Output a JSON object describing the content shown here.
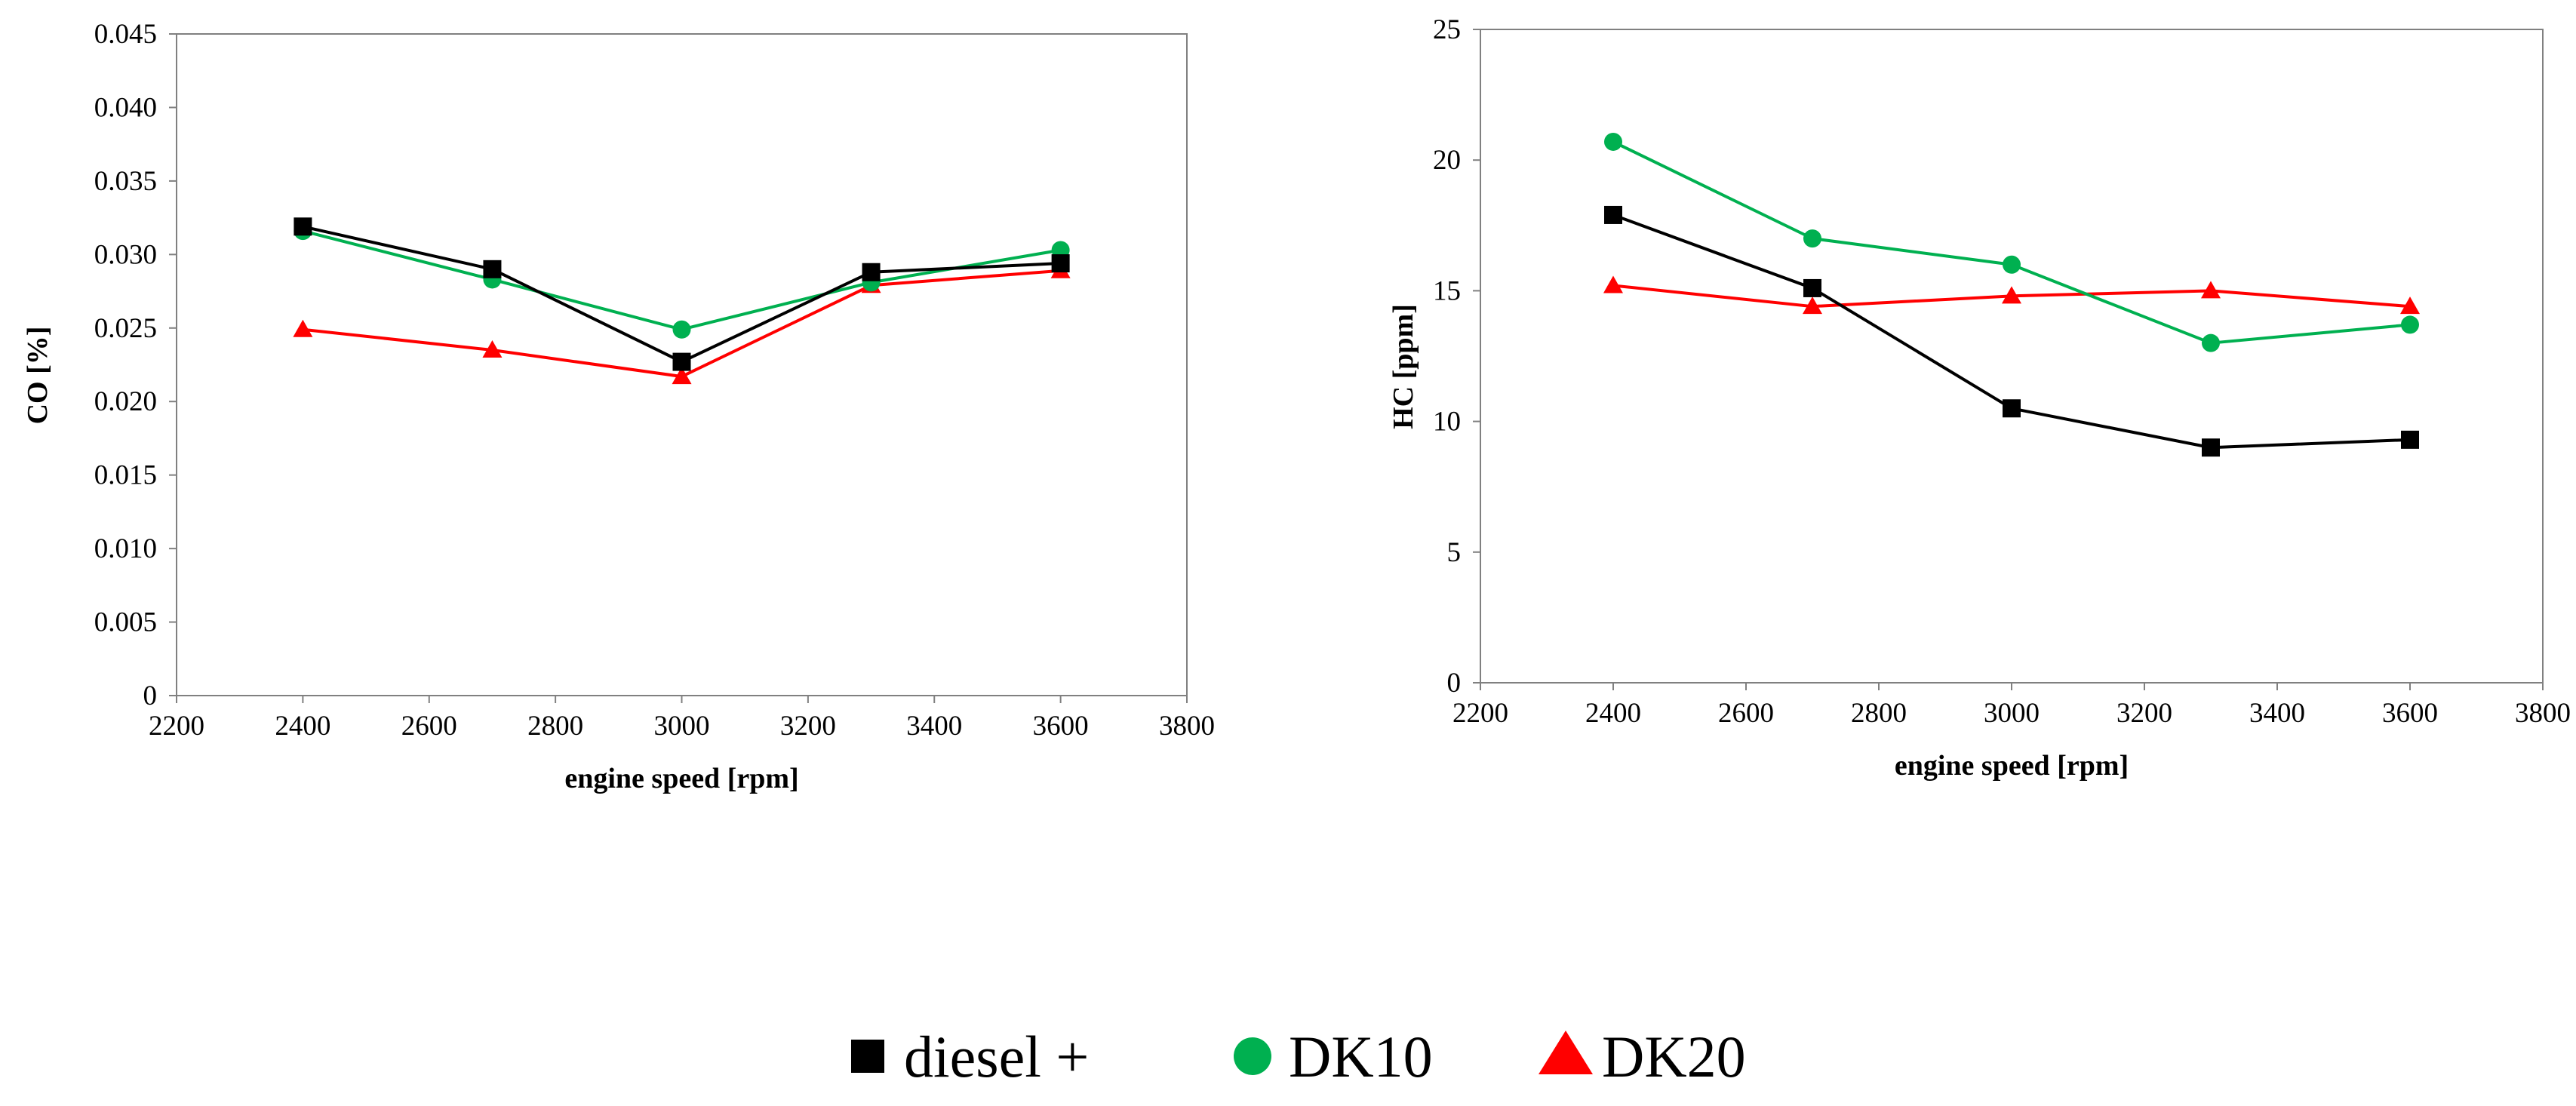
{
  "colors": {
    "diesel": "#000000",
    "dk10": "#00b050",
    "dk20": "#ff0000",
    "frame": "#808080"
  },
  "legend": [
    {
      "key": "diesel",
      "label": "diesel +",
      "marker": "square"
    },
    {
      "key": "dk10",
      "label": "DK10",
      "marker": "circle"
    },
    {
      "key": "dk20",
      "label": "DK20",
      "marker": "triangle"
    }
  ],
  "chart_data": [
    {
      "type": "line",
      "title": "",
      "xlabel": "engine speed [rpm]",
      "ylabel": "CO [%]",
      "xlim": [
        2200,
        3800
      ],
      "ylim": [
        0,
        0.045
      ],
      "xticks": [
        "2200",
        "2400",
        "2600",
        "2800",
        "3000",
        "3200",
        "3400",
        "3600",
        "3800"
      ],
      "yticks": [
        "0",
        "0.005",
        "0.010",
        "0.015",
        "0.020",
        "0.025",
        "0.030",
        "0.035",
        "0.040",
        "0.045"
      ],
      "x": [
        2400,
        2700,
        3000,
        3300,
        3600
      ],
      "grid": false,
      "series": [
        {
          "name": "diesel +",
          "key": "diesel",
          "marker": "square",
          "values": [
            0.0319,
            0.029,
            0.0227,
            0.0288,
            0.0294
          ]
        },
        {
          "name": "DK10",
          "key": "dk10",
          "marker": "circle",
          "values": [
            0.0316,
            0.0283,
            0.0249,
            0.0281,
            0.0303
          ]
        },
        {
          "name": "DK20",
          "key": "dk20",
          "marker": "triangle",
          "values": [
            0.0249,
            0.0235,
            0.0217,
            0.0279,
            0.0289
          ]
        }
      ]
    },
    {
      "type": "line",
      "title": "",
      "xlabel": "engine speed [rpm]",
      "ylabel": "HC [ppm]",
      "xlim": [
        2200,
        3800
      ],
      "ylim": [
        0,
        25
      ],
      "xticks": [
        "2200",
        "2400",
        "2600",
        "2800",
        "3000",
        "3200",
        "3400",
        "3600",
        "3800"
      ],
      "yticks": [
        "0",
        "5",
        "10",
        "15",
        "20",
        "25"
      ],
      "x": [
        2400,
        2700,
        3000,
        3300,
        3600
      ],
      "grid": false,
      "series": [
        {
          "name": "diesel +",
          "key": "diesel",
          "marker": "square",
          "values": [
            17.9,
            15.1,
            10.5,
            9.0,
            9.3
          ]
        },
        {
          "name": "DK10",
          "key": "dk10",
          "marker": "circle",
          "values": [
            20.7,
            17.0,
            16.0,
            13.0,
            13.7
          ]
        },
        {
          "name": "DK20",
          "key": "dk20",
          "marker": "triangle",
          "values": [
            15.2,
            14.4,
            14.8,
            15.0,
            14.4
          ]
        }
      ]
    }
  ]
}
